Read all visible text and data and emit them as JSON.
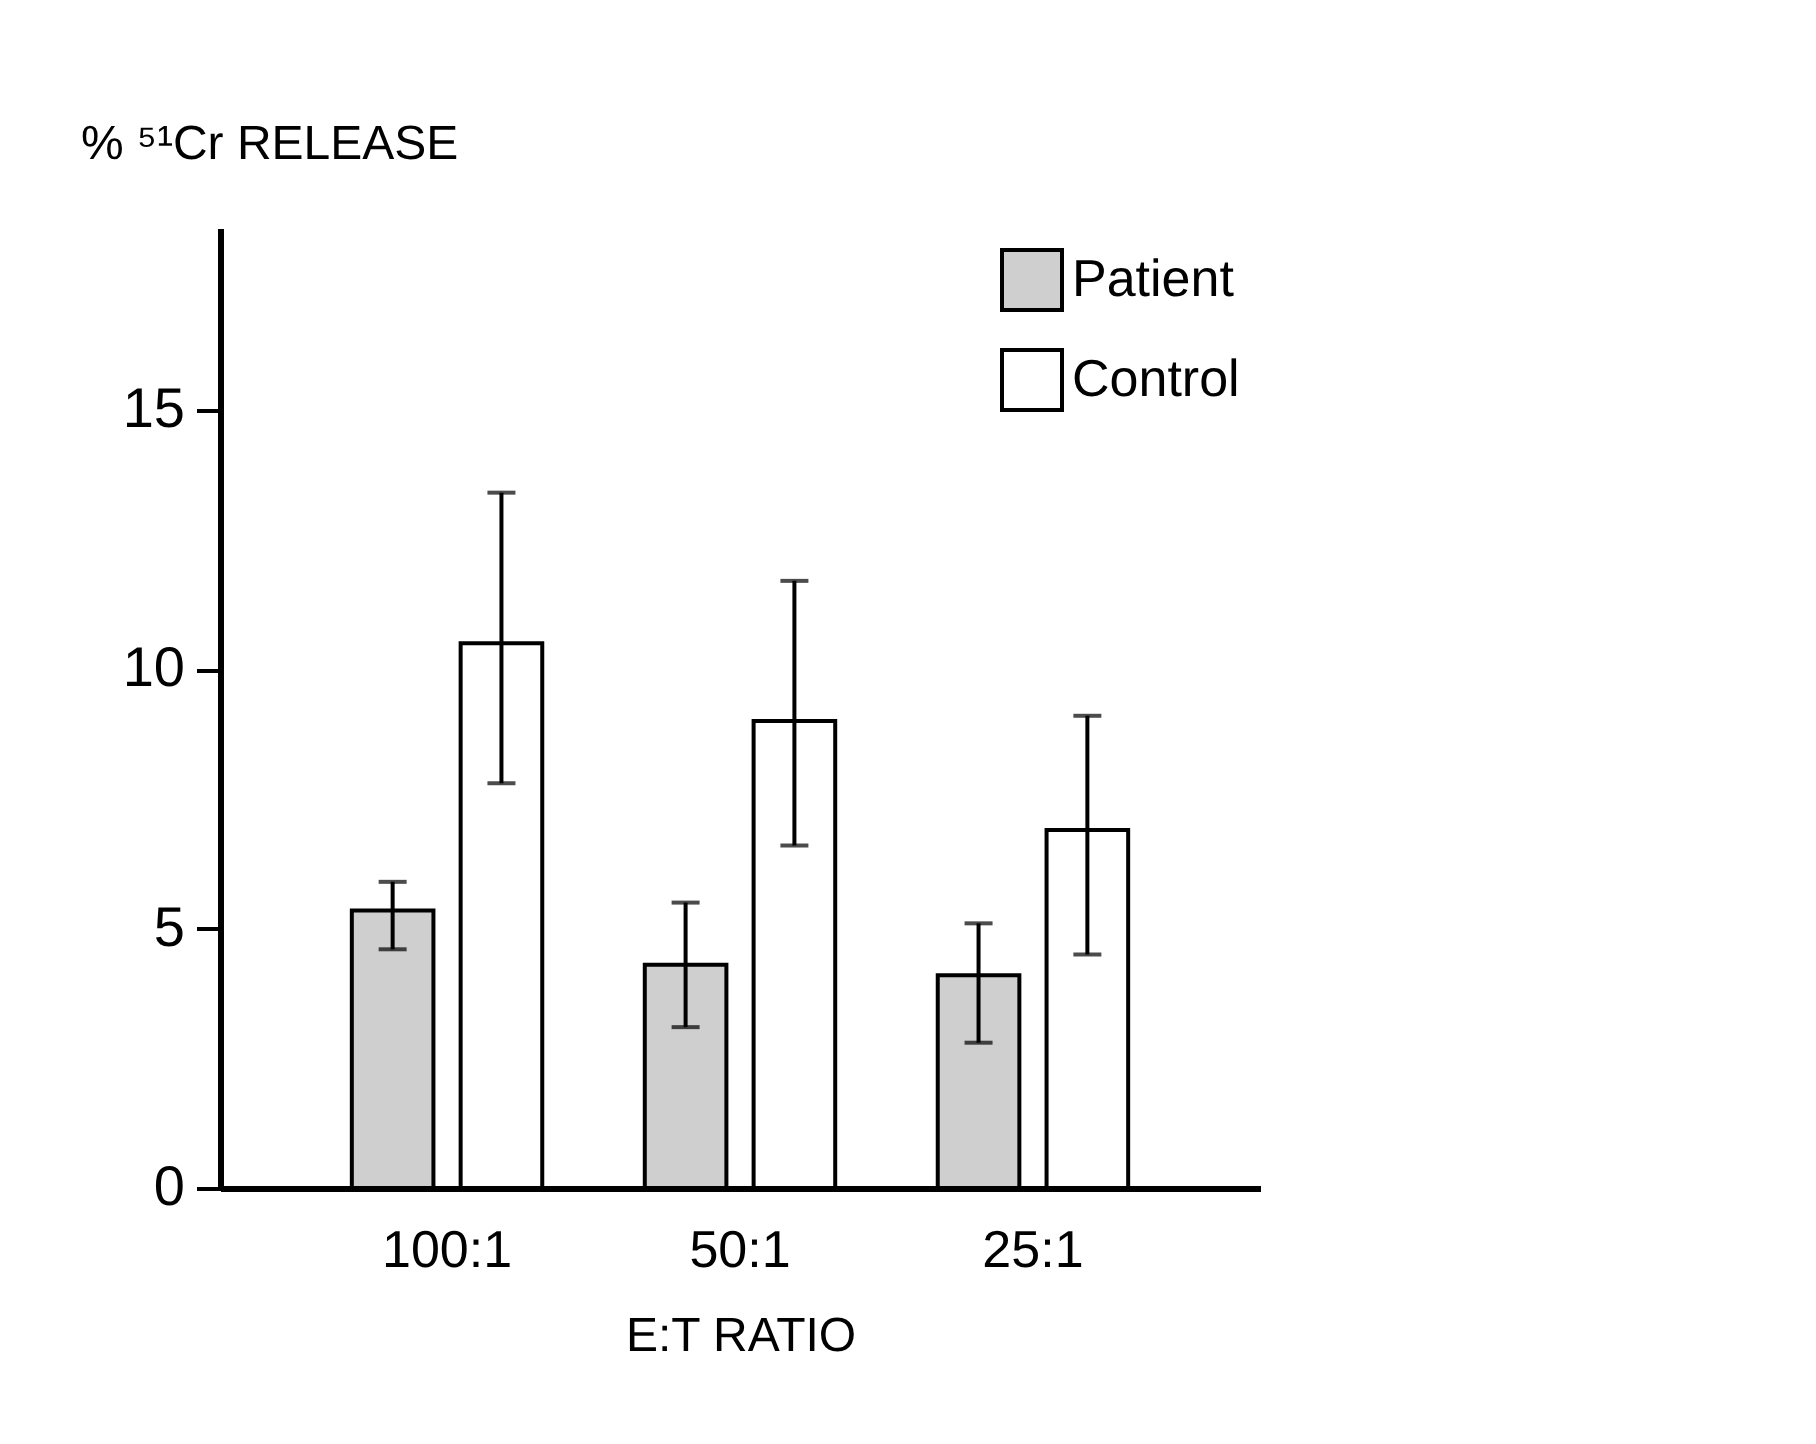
{
  "chart_data": {
    "type": "bar",
    "xlabel": "E:T RATIO",
    "ylabel": "% ⁵¹Cr RELEASE",
    "categories": [
      "100:1",
      "50:1",
      "25:1"
    ],
    "series": [
      {
        "name": "Patient",
        "color": "#cfcfcf",
        "values": [
          5.35,
          4.3,
          4.1
        ],
        "errors": [
          [
            4.6,
            5.9
          ],
          [
            3.1,
            5.5
          ],
          [
            2.8,
            5.1
          ]
        ]
      },
      {
        "name": "Control",
        "color": "#ffffff",
        "values": [
          10.5,
          9.0,
          6.9
        ],
        "errors": [
          [
            7.8,
            13.4
          ],
          [
            6.6,
            11.7
          ],
          [
            4.5,
            9.1
          ]
        ]
      }
    ],
    "ylim": [
      0,
      18.5
    ],
    "yticks": [
      0,
      5,
      10,
      15
    ],
    "grid": false,
    "legend": "top right"
  }
}
